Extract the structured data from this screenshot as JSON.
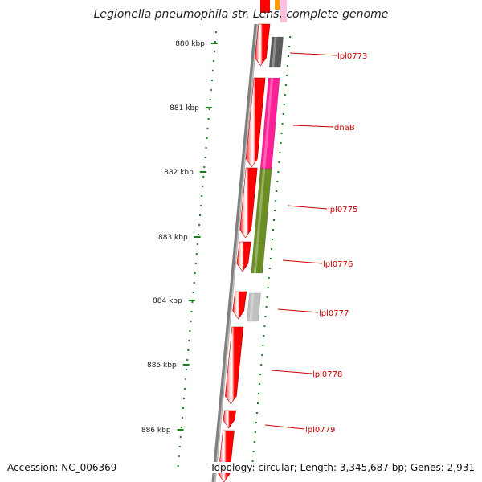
{
  "title": "Legionella pneumophila str. Lens, complete genome",
  "footer": {
    "accession": "Accession: NC_006369",
    "summary": "Topology: circular; Length: 3,345,687 bp; Genes: 2,931"
  },
  "ticks": [
    "880 kbp",
    "881 kbp",
    "882 kbp",
    "883 kbp",
    "884 kbp",
    "885 kbp",
    "886 kbp"
  ],
  "genes": [
    {
      "label": "lpl0773",
      "cog_color": "#5c5c5c"
    },
    {
      "label": "dnaB",
      "cog_color": "#ff1f96"
    },
    {
      "label": "lpl0775",
      "cog_color": "#6b8e23"
    },
    {
      "label": "lpl0776",
      "cog_color": "#6b8e23"
    },
    {
      "label": "lpl0777",
      "cog_color": "#c0c0c0"
    },
    {
      "label": "lpl0778",
      "cog_color": null
    },
    {
      "label": "lpl0779",
      "cog_color": null
    }
  ],
  "colors": {
    "gene": "#ff0000",
    "backbone": "#808080",
    "tick": "#1a7f1a",
    "label": "#cc0000"
  }
}
